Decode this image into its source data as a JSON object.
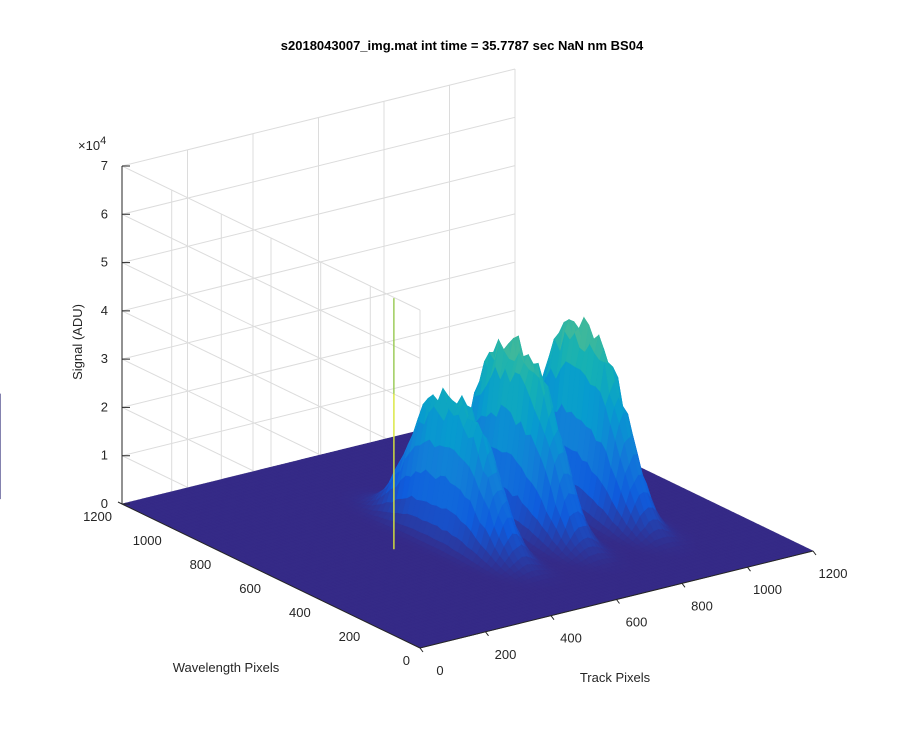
{
  "chart_data": {
    "type": "surface",
    "title": "s2018043007_img.mat int time = 35.7787 sec  NaN nm BS04",
    "xlabel": "Track Pixels",
    "ylabel": "Wavelength Pixels",
    "zlabel": "Signal (ADU)",
    "xlim": [
      0,
      1200
    ],
    "ylim": [
      0,
      1200
    ],
    "zlim": [
      0,
      70000
    ],
    "x_ticks": [
      "0",
      "200",
      "400",
      "600",
      "800",
      "1000",
      "1200"
    ],
    "y_ticks": [
      "0",
      "200",
      "400",
      "600",
      "800",
      "1000",
      "1200"
    ],
    "z_ticks": [
      "0",
      "1",
      "2",
      "3",
      "4",
      "5",
      "6",
      "7"
    ],
    "z_exponent_base": "×10",
    "z_exponent_power": "4",
    "grid": true,
    "colormap": "parula",
    "tracks": [
      {
        "x_center": 530,
        "y_center": 560,
        "peak": 31000
      },
      {
        "x_center": 720,
        "y_center": 560,
        "peak": 39000
      },
      {
        "x_center": 925,
        "y_center": 560,
        "peak": 39500
      }
    ],
    "spike": {
      "x": 360,
      "y": 580,
      "value": 52000
    }
  }
}
